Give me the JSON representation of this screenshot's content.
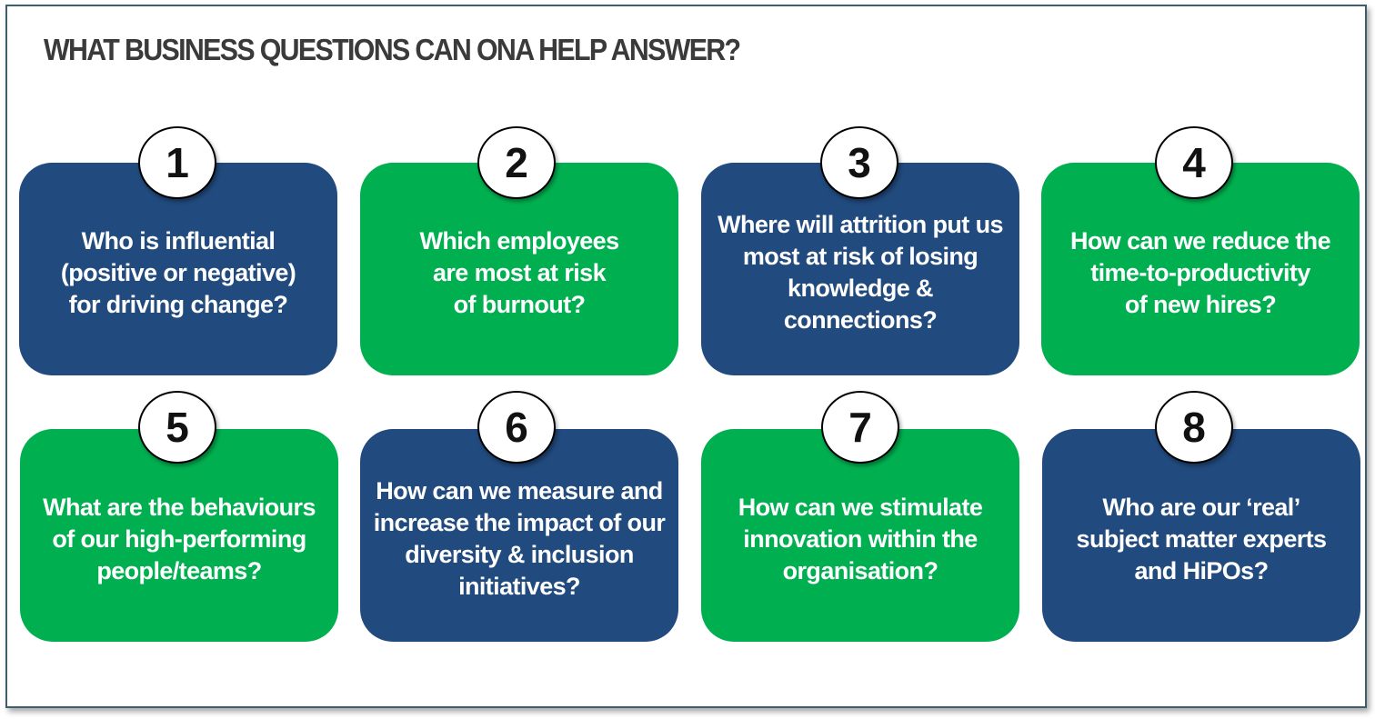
{
  "title": "WHAT BUSINESS QUESTIONS CAN ONA HELP ANSWER?",
  "colors": {
    "blue": "#214a7e",
    "green": "#00b050",
    "title": "#3a3a3a"
  },
  "questions": [
    {
      "number": "1",
      "color": "blue",
      "text": "Who is influential\n(positive or negative)\nfor  driving change?"
    },
    {
      "number": "2",
      "color": "green",
      "text": "Which employees\nare most at risk\nof burnout?"
    },
    {
      "number": "3",
      "color": "blue",
      "text": "Where will attrition put us\nmost at risk of losing\nknowledge & connections?"
    },
    {
      "number": "4",
      "color": "green",
      "text": "How can we reduce the\ntime-to-productivity\nof new hires?"
    },
    {
      "number": "5",
      "color": "green",
      "text": "What are the behaviours\nof our high-performing\npeople/teams?"
    },
    {
      "number": "6",
      "color": "blue",
      "text": "How can we measure and\nincrease the impact of our\ndiversity & inclusion\ninitiatives?"
    },
    {
      "number": "7",
      "color": "green",
      "text": "How can we stimulate\ninnovation within the\norganisation?"
    },
    {
      "number": "8",
      "color": "blue",
      "text": "Who are our ‘real’\nsubject matter experts\nand HiPOs?"
    }
  ]
}
